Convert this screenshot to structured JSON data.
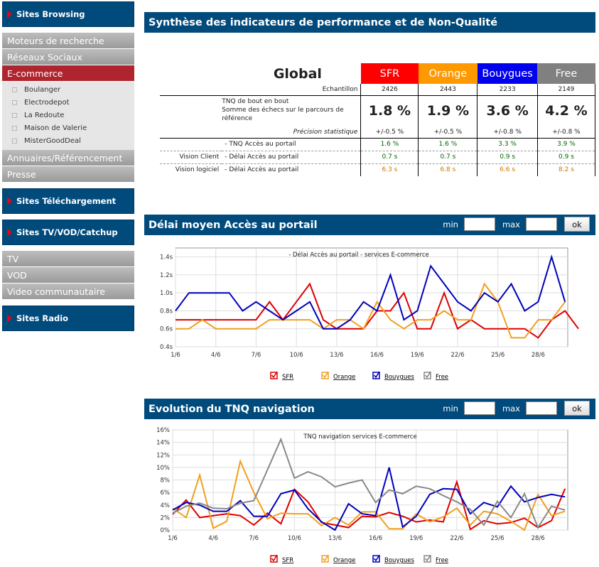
{
  "sidebar": {
    "sections": [
      {
        "title": "Sites Browsing",
        "items": [
          {
            "label": "Moteurs de recherche"
          },
          {
            "label": "Réseaux Sociaux"
          },
          {
            "label": "E-commerce",
            "active": true,
            "subs": [
              "Boulanger",
              "Electrodepot",
              "La Redoute",
              "Maison de Valerie",
              "MisterGoodDeal"
            ]
          },
          {
            "label": "Annuaires/Référencement"
          },
          {
            "label": "Presse"
          }
        ]
      },
      {
        "title": "Sites Téléchargement",
        "items": []
      },
      {
        "title": "Sites TV/VOD/Catchup",
        "items": [
          {
            "label": "TV"
          },
          {
            "label": "VOD"
          },
          {
            "label": "Video communautaire"
          }
        ]
      },
      {
        "title": "Sites Radio",
        "items": []
      }
    ]
  },
  "synthese": {
    "title": "Synthèse des indicateurs de performance et de Non-Qualité",
    "global_label": "Global",
    "operators": [
      {
        "name": "SFR",
        "color": "#ff0000"
      },
      {
        "name": "Orange",
        "color": "#ff9900"
      },
      {
        "name": "Bouygues",
        "color": "#0000cc"
      },
      {
        "name": "Free",
        "color": "#808080"
      }
    ],
    "echantillon_label": "Echantillon",
    "echantillon": [
      "2426",
      "2443",
      "2233",
      "2149"
    ],
    "tnq_label": "TNQ de bout en bout\nSomme des échecs sur le parcours de référence",
    "tnq": [
      "1.8 %",
      "1.9 %",
      "3.6 %",
      "4.2 %"
    ],
    "precision_label": "Précision statistique",
    "precision": [
      "+/-0.5 %",
      "+/-0.5 %",
      "+/-0.8 %",
      "+/-0.8 %"
    ],
    "rows": [
      {
        "group": "",
        "label": "- TNQ Accès au portail",
        "values": [
          "1.6 %",
          "1.6 %",
          "3.3 %",
          "3.9 %"
        ],
        "color": "#006600"
      },
      {
        "group": "Vision Client",
        "label": "- Délai Accès au portail",
        "values": [
          "0.7 s",
          "0.7 s",
          "0.9 s",
          "0.9 s"
        ],
        "color": "#006600"
      },
      {
        "group": "Vision logiciel",
        "label": "- Délai Accès au portail",
        "values": [
          "6.3 s",
          "6.8 s",
          "6.6 s",
          "8.2 s"
        ],
        "color": "#cc7700"
      }
    ]
  },
  "delai": {
    "title": "Délai moyen Accès au portail",
    "min_label": "min",
    "max_label": "max",
    "ok_label": "ok"
  },
  "evolution": {
    "title": "Evolution du TNQ navigation",
    "min_label": "min",
    "max_label": "max",
    "ok_label": "ok"
  },
  "chart_data": [
    {
      "type": "line",
      "title": "- Délai Accès au portail - services E-commerce",
      "x_ticks": [
        "1/6",
        "4/6",
        "7/6",
        "10/6",
        "13/6",
        "16/6",
        "19/6",
        "22/6",
        "25/6",
        "28/6"
      ],
      "y_ticks": [
        "0.4s",
        "0.6s",
        "0.8s",
        "1.0s",
        "1.2s",
        "1.4s"
      ],
      "ylim": [
        0.4,
        1.5
      ],
      "legend_position": "bottom",
      "series": [
        {
          "name": "SFR",
          "color": "#dd0000",
          "values": [
            0.7,
            0.7,
            0.7,
            0.7,
            0.7,
            0.7,
            0.7,
            0.9,
            0.7,
            0.9,
            1.1,
            0.7,
            0.6,
            0.6,
            0.6,
            0.8,
            0.8,
            1.0,
            0.6,
            0.6,
            1.0,
            0.6,
            0.7,
            0.6,
            0.6,
            0.6,
            0.6,
            0.5,
            0.7,
            0.8,
            0.6
          ]
        },
        {
          "name": "Orange",
          "color": "#f0a020",
          "values": [
            0.6,
            0.6,
            0.7,
            0.6,
            0.6,
            0.6,
            0.6,
            0.7,
            0.7,
            0.7,
            0.7,
            0.6,
            0.7,
            0.7,
            0.6,
            0.9,
            0.7,
            0.6,
            0.7,
            0.7,
            0.8,
            0.7,
            0.7,
            1.1,
            0.9,
            0.5,
            0.5,
            0.7,
            0.7,
            0.9
          ]
        },
        {
          "name": "Bouygues",
          "color": "#0000bb",
          "values": [
            0.8,
            1.0,
            1.0,
            1.0,
            1.0,
            0.8,
            0.9,
            0.8,
            0.7,
            0.8,
            0.9,
            0.6,
            0.6,
            0.7,
            0.9,
            0.8,
            1.2,
            0.7,
            0.8,
            1.3,
            1.1,
            0.9,
            0.8,
            1.0,
            0.9,
            1.1,
            0.8,
            0.9,
            1.4,
            0.9
          ]
        },
        {
          "name": "Free",
          "color": "#888888",
          "values": []
        }
      ]
    },
    {
      "type": "line",
      "title": "TNQ navigation services E-commerce",
      "x_ticks": [
        "1/6",
        "4/6",
        "7/6",
        "10/6",
        "13/6",
        "16/6",
        "19/6",
        "22/6",
        "25/6",
        "28/6"
      ],
      "y_ticks": [
        "0%",
        "2%",
        "4%",
        "6%",
        "8%",
        "10%",
        "12%",
        "14%",
        "16%"
      ],
      "ylim": [
        0,
        16
      ],
      "legend_position": "bottom",
      "series": [
        {
          "name": "SFR",
          "color": "#dd0000",
          "values": [
            2.5,
            4.8,
            2,
            2.3,
            2.6,
            2.3,
            0.8,
            2.7,
            1,
            6.5,
            4.5,
            1.2,
            0.8,
            0.4,
            2.2,
            2.1,
            2.8,
            2.2,
            1.3,
            1.6,
            1.3,
            7.7,
            0.1,
            1.5,
            1,
            1.2,
            1.9,
            0.4,
            1.5,
            6.6
          ]
        },
        {
          "name": "Orange",
          "color": "#f0a020",
          "values": [
            3.5,
            2,
            8.8,
            0.3,
            1.4,
            11,
            6,
            1.8,
            2.7,
            2.6,
            2.6,
            0.7,
            2,
            0.8,
            2.9,
            2.9,
            0.2,
            0.2,
            2.6,
            1.3,
            2.1,
            3.5,
            0.8,
            3,
            2.6,
            1.4,
            0,
            5.7,
            2.3,
            3
          ]
        },
        {
          "name": "Bouygues",
          "color": "#0000bb",
          "values": [
            3.2,
            4.4,
            4,
            3,
            3,
            4.7,
            2.2,
            2.2,
            5.8,
            6.4,
            3.4,
            1.3,
            0,
            4.2,
            2.6,
            2.3,
            10,
            0.5,
            2.2,
            5.7,
            6.6,
            6.5,
            2.6,
            4.4,
            3.7,
            7,
            4.5,
            5.2,
            5.7,
            5.3
          ]
        },
        {
          "name": "Free",
          "color": "#888888",
          "values": [
            2.7,
            3.8,
            4.3,
            3.5,
            3.4,
            4.3,
            4.7,
            9.6,
            14.5,
            8.3,
            9.3,
            8.5,
            6.9,
            7.5,
            8,
            4.4,
            6.4,
            5.8,
            7,
            6.6,
            5.5,
            4.5,
            3.3,
            0.8,
            4.6,
            2,
            5.8,
            0.4,
            3.8,
            3.2
          ]
        }
      ]
    }
  ]
}
